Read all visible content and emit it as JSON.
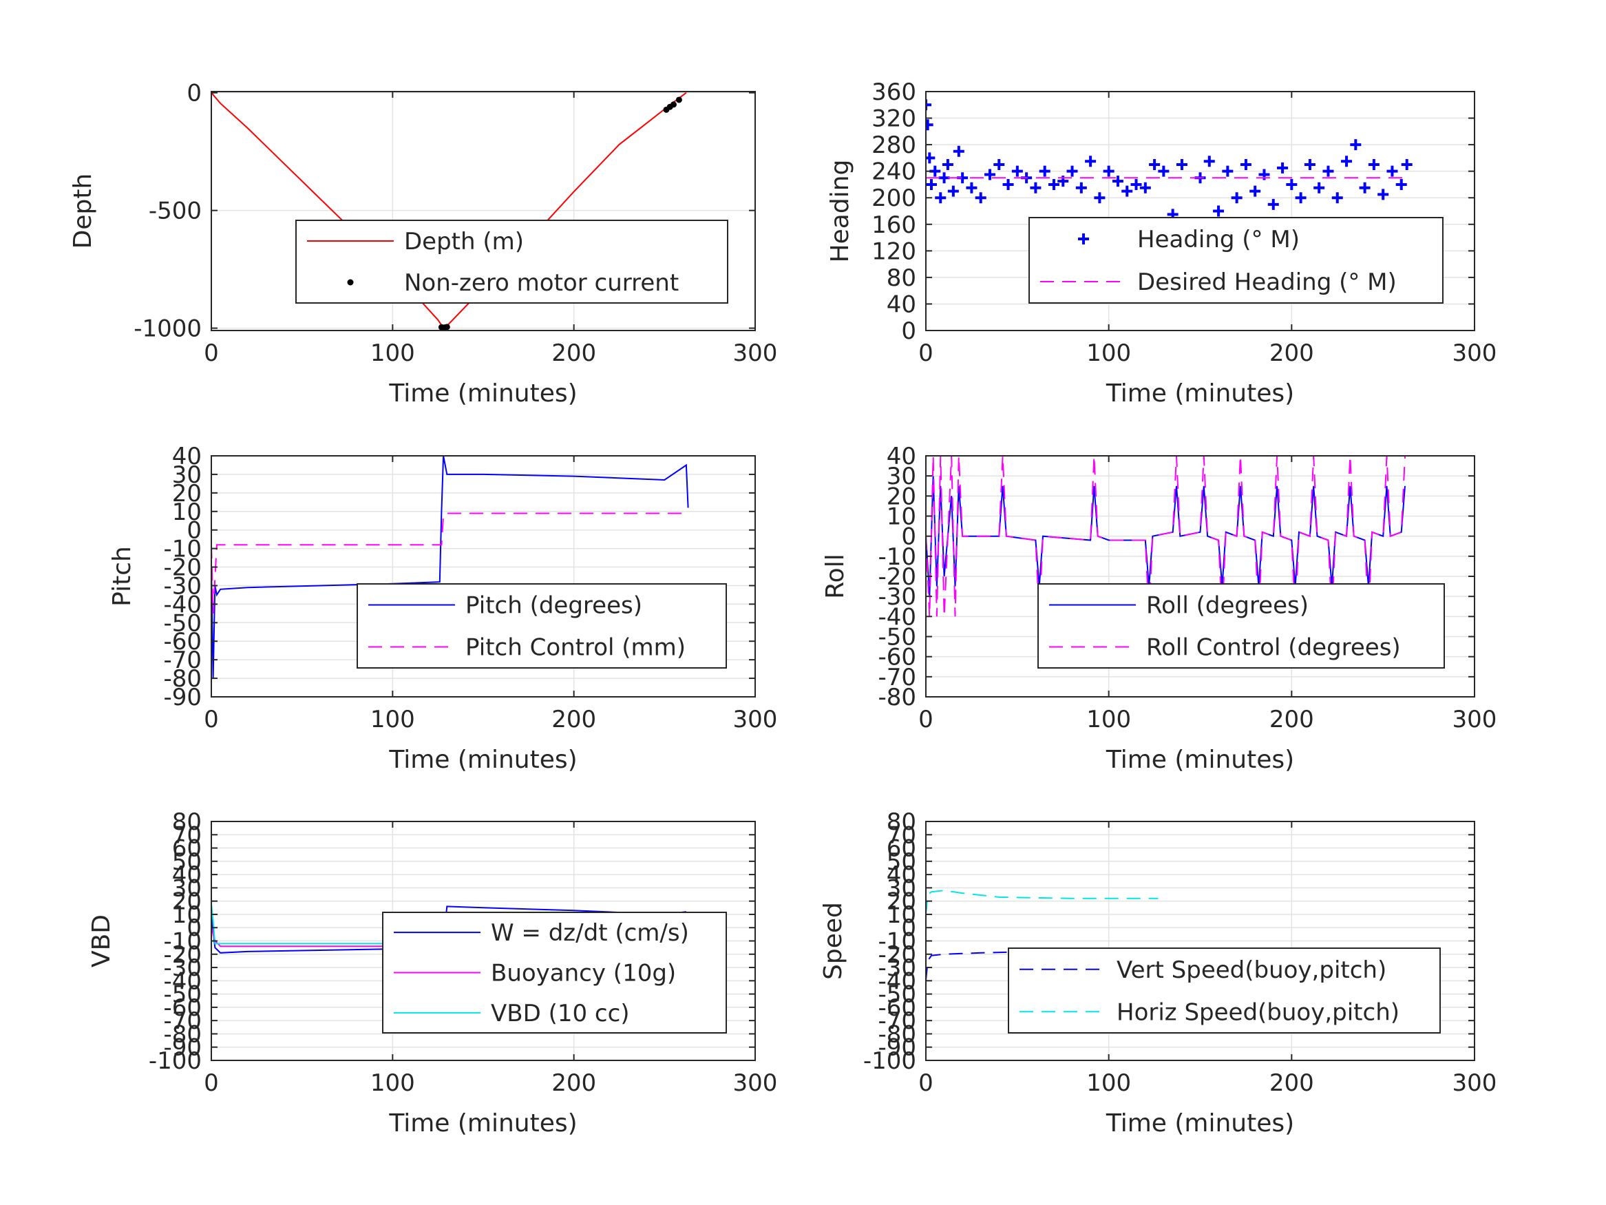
{
  "figure": {
    "background": "#ffffff",
    "grid_color": "#e3e3e3",
    "axis_color": "#262626"
  },
  "chart_data": [
    {
      "type": "line",
      "xlabel": "Time (minutes)",
      "ylabel": "Depth",
      "xlim": [
        0,
        300
      ],
      "ylim": [
        -1010,
        5
      ],
      "xticks": [
        0,
        100,
        200,
        300
      ],
      "yticks": [
        0,
        -500,
        -1000
      ],
      "ytick_labels": [
        "0",
        "-500",
        "-1000"
      ],
      "grid": true,
      "legend_position": "lower-right",
      "series": [
        {
          "name": "Depth (m)",
          "style": "solid",
          "color": "#ff0000",
          "x": [
            0,
            5,
            20,
            40,
            60,
            80,
            100,
            115,
            125,
            128,
            130,
            150,
            175,
            200,
            225,
            240,
            250,
            255,
            262
          ],
          "y": [
            0,
            -45,
            -150,
            -300,
            -450,
            -600,
            -760,
            -880,
            -965,
            -998,
            -990,
            -830,
            -630,
            -420,
            -220,
            -130,
            -70,
            -40,
            0
          ]
        },
        {
          "name": "Non-zero motor current",
          "style": "dot",
          "color": "#000000",
          "x": [
            127,
            128,
            129,
            130,
            251,
            253,
            255,
            258
          ],
          "y": [
            -996,
            -998,
            -997,
            -995,
            -72,
            -60,
            -50,
            -30
          ]
        }
      ]
    },
    {
      "type": "scatter",
      "xlabel": "Time (minutes)",
      "ylabel": "Heading",
      "xlim": [
        0,
        300
      ],
      "ylim": [
        0,
        360
      ],
      "xticks": [
        0,
        100,
        200,
        300
      ],
      "yticks": [
        0,
        40,
        80,
        120,
        160,
        200,
        240,
        280,
        320,
        360
      ],
      "ytick_labels": [
        "0",
        "40",
        "80",
        "120",
        "160",
        "200",
        "240",
        "280",
        "320",
        "360"
      ],
      "grid": true,
      "legend_position": "lower-right",
      "series": [
        {
          "name": "Heading (° M)",
          "style": "plus",
          "color": "#0000ff",
          "x": [
            0,
            1,
            2,
            3,
            5,
            8,
            10,
            12,
            15,
            18,
            20,
            25,
            30,
            35,
            40,
            45,
            50,
            55,
            60,
            65,
            70,
            75,
            80,
            85,
            90,
            95,
            100,
            105,
            110,
            115,
            120,
            125,
            130,
            135,
            140,
            145,
            150,
            155,
            160,
            165,
            170,
            175,
            180,
            185,
            190,
            195,
            200,
            205,
            210,
            215,
            220,
            225,
            230,
            235,
            240,
            245,
            250,
            255,
            260,
            263
          ],
          "y": [
            340,
            310,
            260,
            220,
            240,
            200,
            230,
            250,
            210,
            270,
            230,
            215,
            200,
            235,
            250,
            220,
            240,
            230,
            215,
            240,
            220,
            225,
            240,
            215,
            255,
            200,
            240,
            225,
            210,
            220,
            215,
            250,
            240,
            175,
            250,
            160,
            230,
            255,
            180,
            240,
            200,
            250,
            210,
            235,
            190,
            245,
            220,
            200,
            250,
            215,
            240,
            200,
            255,
            280,
            215,
            250,
            205,
            240,
            220,
            250
          ]
        },
        {
          "name": "Desired Heading (° M)",
          "style": "dashed",
          "color": "#ff00ff",
          "x": [
            0,
            263
          ],
          "y": [
            230,
            230
          ]
        }
      ]
    },
    {
      "type": "line",
      "xlabel": "Time (minutes)",
      "ylabel": "Pitch",
      "xlim": [
        0,
        300
      ],
      "ylim": [
        -90,
        40
      ],
      "xticks": [
        0,
        100,
        200,
        300
      ],
      "yticks": [
        40,
        30,
        20,
        10,
        0,
        -10,
        -20,
        -30,
        -40,
        -50,
        -60,
        -70,
        -80,
        -90
      ],
      "ytick_labels": [
        "40",
        "30",
        "20",
        "10",
        "0",
        "-10",
        "-20",
        "-30",
        "-40",
        "-50",
        "-60",
        "-70",
        "-80",
        "-90"
      ],
      "grid": true,
      "legend_position": "lower-right",
      "series": [
        {
          "name": "Pitch (degrees)",
          "style": "solid",
          "color": "#0000ff",
          "x": [
            0,
            1,
            2,
            3,
            5,
            20,
            60,
            100,
            126,
            127,
            128,
            130,
            150,
            200,
            250,
            262,
            263
          ],
          "y": [
            -20,
            -80,
            -30,
            -35,
            -32,
            -31,
            -30,
            -29,
            -28,
            10,
            40,
            30,
            30,
            29,
            27,
            35,
            12
          ]
        },
        {
          "name": "Pitch Control (mm)",
          "style": "dashed",
          "color": "#ff00ff",
          "x": [
            0,
            1,
            3,
            127,
            128,
            129,
            263
          ],
          "y": [
            -8,
            -45,
            -8,
            -8,
            8,
            9,
            9
          ]
        }
      ]
    },
    {
      "type": "line",
      "xlabel": "Time (minutes)",
      "ylabel": "Roll",
      "xlim": [
        0,
        300
      ],
      "ylim": [
        -80,
        40
      ],
      "xticks": [
        0,
        100,
        200,
        300
      ],
      "yticks": [
        40,
        30,
        20,
        10,
        0,
        -10,
        -20,
        -30,
        -40,
        -50,
        -60,
        -70,
        -80
      ],
      "ytick_labels": [
        "40",
        "30",
        "20",
        "10",
        "0",
        "-10",
        "-20",
        "-30",
        "-40",
        "-50",
        "-60",
        "-70",
        "-80"
      ],
      "grid": true,
      "legend_position": "lower-right",
      "series": [
        {
          "name": "Roll (degrees)",
          "style": "solid",
          "color": "#0000ff",
          "x": [
            0,
            2,
            4,
            6,
            8,
            10,
            12,
            14,
            16,
            18,
            20,
            22,
            25,
            40,
            42,
            44,
            60,
            62,
            64,
            90,
            92,
            94,
            100,
            120,
            122,
            124,
            135,
            137,
            139,
            150,
            152,
            154,
            160,
            162,
            164,
            170,
            172,
            174,
            180,
            182,
            184,
            190,
            192,
            194,
            200,
            202,
            204,
            210,
            212,
            214,
            220,
            222,
            224,
            230,
            232,
            234,
            240,
            242,
            244,
            250,
            252,
            254,
            260,
            262
          ],
          "y": [
            0,
            -30,
            30,
            -25,
            25,
            -20,
            0,
            20,
            -25,
            25,
            0,
            0,
            0,
            0,
            25,
            0,
            -2,
            -25,
            0,
            -2,
            25,
            0,
            -2,
            -2,
            -25,
            0,
            2,
            25,
            0,
            2,
            25,
            0,
            -2,
            -25,
            2,
            0,
            25,
            0,
            -2,
            -25,
            2,
            0,
            25,
            0,
            -2,
            -25,
            2,
            0,
            25,
            0,
            -2,
            -25,
            2,
            0,
            25,
            0,
            -2,
            -25,
            2,
            0,
            25,
            0,
            2,
            25
          ]
        },
        {
          "name": "Roll Control (degrees)",
          "style": "dashed",
          "color": "#ff00ff",
          "x": [
            0,
            2,
            4,
            6,
            8,
            10,
            12,
            14,
            16,
            18,
            20,
            22,
            25,
            40,
            42,
            44,
            60,
            62,
            64,
            90,
            92,
            94,
            100,
            120,
            122,
            124,
            135,
            137,
            139,
            150,
            152,
            154,
            160,
            162,
            164,
            170,
            172,
            174,
            180,
            182,
            184,
            190,
            192,
            194,
            200,
            202,
            204,
            210,
            212,
            214,
            220,
            222,
            224,
            230,
            232,
            234,
            240,
            242,
            244,
            250,
            252,
            254,
            260,
            262
          ],
          "y": [
            0,
            -40,
            40,
            -40,
            40,
            -40,
            0,
            40,
            -40,
            40,
            0,
            0,
            0,
            0,
            40,
            0,
            -2,
            -40,
            0,
            -2,
            40,
            0,
            -2,
            -2,
            -40,
            0,
            2,
            40,
            0,
            2,
            40,
            0,
            -2,
            -40,
            2,
            0,
            40,
            0,
            -2,
            -40,
            2,
            0,
            40,
            0,
            -2,
            -40,
            2,
            0,
            40,
            0,
            -2,
            -40,
            2,
            0,
            40,
            0,
            -2,
            -40,
            2,
            0,
            40,
            0,
            2,
            40
          ]
        }
      ]
    },
    {
      "type": "line",
      "xlabel": "Time (minutes)",
      "ylabel": "VBD",
      "xlim": [
        0,
        300
      ],
      "ylim": [
        -100,
        80
      ],
      "xticks": [
        0,
        100,
        200,
        300
      ],
      "yticks": [
        80,
        70,
        60,
        50,
        40,
        30,
        20,
        10,
        0,
        -10,
        -20,
        -30,
        -40,
        -50,
        -60,
        -70,
        -80,
        -90,
        -100
      ],
      "ytick_labels": [
        "80",
        "70",
        "60",
        "50",
        "40",
        "30",
        "20",
        "10",
        "0",
        "-10",
        "-20",
        "-30",
        "-40",
        "-50",
        "-60",
        "-70",
        "-80",
        "-90",
        "-100"
      ],
      "grid": true,
      "legend_position": "lower-right",
      "series": [
        {
          "name": "W = dz/dt (cm/s)",
          "style": "solid",
          "color": "#0000ff",
          "x": [
            0,
            2,
            5,
            20,
            60,
            100,
            126,
            128,
            130,
            150,
            200,
            250,
            262
          ],
          "y": [
            10,
            -15,
            -19,
            -18,
            -17,
            -16,
            -15,
            -10,
            16,
            15,
            13,
            10,
            12
          ]
        },
        {
          "name": "Buoyancy (10g)",
          "style": "solid",
          "color": "#ff00ff",
          "x": [
            0,
            2,
            5,
            20,
            100,
            127,
            128,
            130,
            262
          ],
          "y": [
            0,
            -10,
            -14,
            -14,
            -14,
            -14,
            10,
            10,
            10
          ]
        },
        {
          "name": "VBD (10 cc)",
          "style": "solid",
          "color": "#00e5e5",
          "x": [
            0,
            1,
            2,
            5,
            127,
            128,
            262
          ],
          "y": [
            18,
            5,
            -12,
            -12,
            -12,
            9,
            9
          ]
        }
      ]
    },
    {
      "type": "line",
      "xlabel": "Time (minutes)",
      "ylabel": "Speed",
      "xlim": [
        0,
        300
      ],
      "ylim": [
        -100,
        80
      ],
      "xticks": [
        0,
        100,
        200,
        300
      ],
      "yticks": [
        80,
        70,
        60,
        50,
        40,
        30,
        20,
        10,
        0,
        -10,
        -20,
        -30,
        -40,
        -50,
        -60,
        -70,
        -80,
        -90,
        -100
      ],
      "ytick_labels": [
        "80",
        "70",
        "60",
        "50",
        "40",
        "30",
        "20",
        "10",
        "0",
        "-10",
        "-20",
        "-30",
        "-40",
        "-50",
        "-60",
        "-70",
        "-80",
        "-90",
        "-100"
      ],
      "grid": true,
      "legend_position": "lower-right",
      "series": [
        {
          "name": "Vert Speed(buoy,pitch)",
          "style": "dashed",
          "color": "#0000ff",
          "x": [
            0,
            1,
            3,
            10,
            30,
            60,
            100,
            127
          ],
          "y": [
            -40,
            -25,
            -21,
            -20,
            -19,
            -18,
            -18,
            -17
          ]
        },
        {
          "name": "Horiz Speed(buoy,pitch)",
          "style": "dashed",
          "color": "#00e5e5",
          "x": [
            0,
            1,
            3,
            10,
            20,
            40,
            80,
            127
          ],
          "y": [
            10,
            25,
            27,
            28,
            26,
            23,
            22,
            22
          ]
        }
      ]
    }
  ]
}
